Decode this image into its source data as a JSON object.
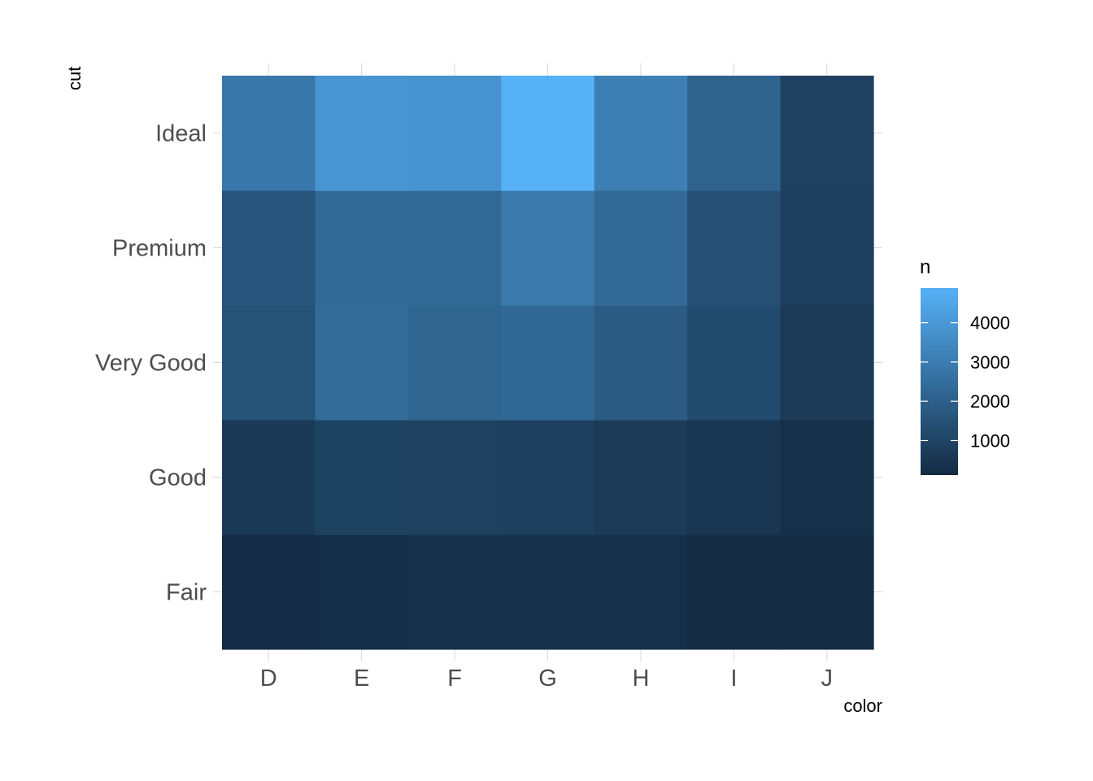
{
  "chart_data": {
    "type": "heatmap",
    "xlabel": "color",
    "ylabel": "cut",
    "x_categories": [
      "D",
      "E",
      "F",
      "G",
      "H",
      "I",
      "J"
    ],
    "y_categories": [
      "Fair",
      "Good",
      "Very Good",
      "Premium",
      "Ideal"
    ],
    "values": [
      [
        163,
        224,
        312,
        314,
        303,
        175,
        119
      ],
      [
        662,
        933,
        909,
        871,
        702,
        522,
        307
      ],
      [
        1513,
        2400,
        2164,
        2299,
        1824,
        1204,
        678
      ],
      [
        1603,
        2337,
        2331,
        2924,
        2360,
        1428,
        808
      ],
      [
        2834,
        3903,
        3826,
        4884,
        3115,
        2093,
        896
      ]
    ],
    "legend": {
      "title": "n",
      "ticks": [
        1000,
        2000,
        3000,
        4000
      ],
      "tick_labels": [
        "1000",
        "2000",
        "3000",
        "4000"
      ],
      "min": 119,
      "max": 4884,
      "low_color": "#132B43",
      "high_color": "#56B1F7",
      "position": "right"
    }
  }
}
